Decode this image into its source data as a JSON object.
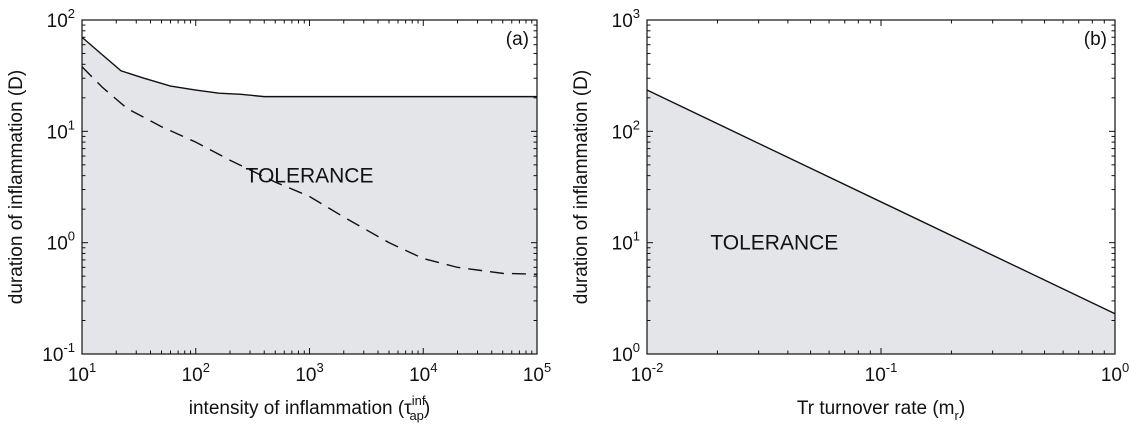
{
  "chart_data": [
    {
      "type": "line",
      "panel_label": "(a)",
      "xlabel": "intensity of inflammation (τ",
      "xlabel_sup": "inf",
      "xlabel_sub": "ap",
      "xlabel_close": ")",
      "ylabel": "duration of inflammation (D)",
      "xscale": "log",
      "yscale": "log",
      "xlim": [
        10,
        100000
      ],
      "ylim": [
        0.1,
        100
      ],
      "xticks": [
        {
          "value": 10,
          "base": "10",
          "exp": "1"
        },
        {
          "value": 100,
          "base": "10",
          "exp": "2"
        },
        {
          "value": 1000,
          "base": "10",
          "exp": "3"
        },
        {
          "value": 10000,
          "base": "10",
          "exp": "4"
        },
        {
          "value": 100000,
          "base": "10",
          "exp": "5"
        }
      ],
      "yticks": [
        {
          "value": 0.1,
          "base": "10",
          "exp": "-1"
        },
        {
          "value": 1,
          "base": "10",
          "exp": "0"
        },
        {
          "value": 10,
          "base": "10",
          "exp": "1"
        },
        {
          "value": 100,
          "base": "10",
          "exp": "2"
        }
      ],
      "region_label": "TOLERANCE",
      "region_label_at": [
        1000,
        4
      ],
      "region_fill": "#e3e5e8",
      "series": [
        {
          "style": "solid",
          "fill_below": true,
          "x": [
            10,
            14,
            22,
            35,
            60,
            100,
            160,
            250,
            400,
            1000,
            10000,
            100000
          ],
          "y": [
            70,
            52,
            35,
            30,
            25.5,
            23.5,
            22,
            21.5,
            20.5,
            20.5,
            20.5,
            20.5
          ]
        },
        {
          "style": "dashed",
          "fill_below": false,
          "x": [
            10,
            15,
            25,
            50,
            100,
            200,
            500,
            1000,
            2000,
            5000,
            10000,
            20000,
            50000,
            100000
          ],
          "y": [
            38,
            25,
            16,
            11,
            8,
            5.5,
            3.5,
            2.6,
            1.7,
            1.0,
            0.72,
            0.6,
            0.53,
            0.52
          ]
        }
      ]
    },
    {
      "type": "line",
      "panel_label": "(b)",
      "xlabel": "Tr turnover rate (m",
      "xlabel_sub": "r",
      "xlabel_close": ")",
      "ylabel": "duration of inflammation (D)",
      "xscale": "log",
      "yscale": "log",
      "xlim": [
        0.01,
        1
      ],
      "ylim": [
        1,
        1000
      ],
      "xticks": [
        {
          "value": 0.01,
          "base": "10",
          "exp": "-2"
        },
        {
          "value": 0.1,
          "base": "10",
          "exp": "-1"
        },
        {
          "value": 1,
          "base": "10",
          "exp": "0"
        }
      ],
      "yticks": [
        {
          "value": 1,
          "base": "10",
          "exp": "0"
        },
        {
          "value": 10,
          "base": "10",
          "exp": "1"
        },
        {
          "value": 100,
          "base": "10",
          "exp": "2"
        },
        {
          "value": 1000,
          "base": "10",
          "exp": "3"
        }
      ],
      "region_label": "TOLERANCE",
      "region_label_at": [
        0.035,
        10
      ],
      "region_fill": "#e3e5e8",
      "series": [
        {
          "style": "solid",
          "fill_below": true,
          "x": [
            0.01,
            1
          ],
          "y": [
            235,
            2.3
          ]
        }
      ]
    }
  ]
}
